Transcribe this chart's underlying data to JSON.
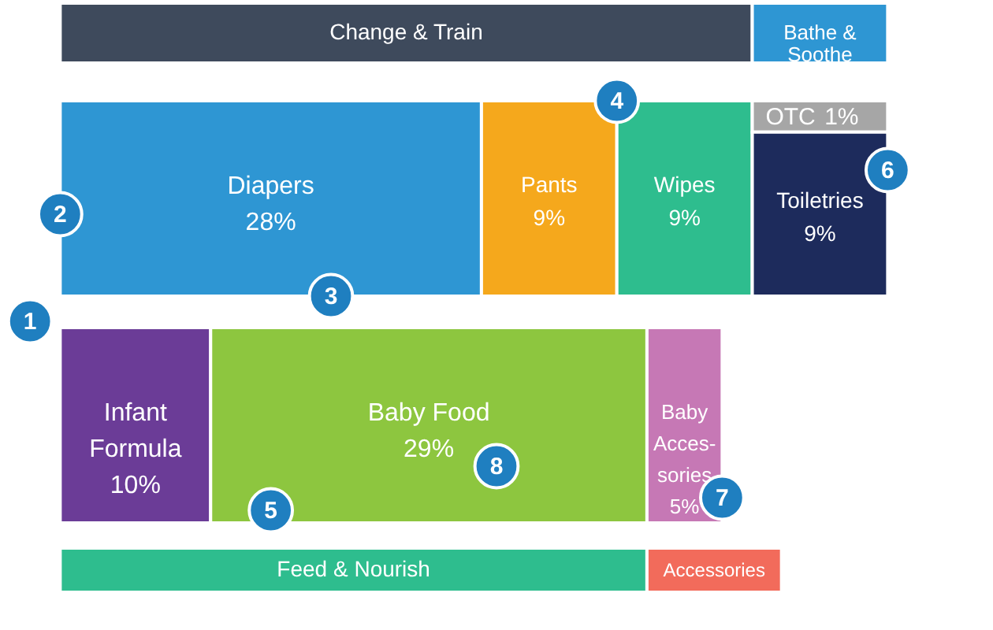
{
  "chart_data": {
    "type": "other",
    "categories": [
      "Diapers",
      "Pants",
      "Wipes",
      "OTC",
      "Toiletries",
      "Infant\nFormula",
      "Baby Food",
      "Baby\nAcces-\nsories"
    ],
    "values": [
      28,
      9,
      9,
      1,
      9,
      10,
      29,
      5
    ],
    "value_labels": [
      "28%",
      "9%",
      "9%",
      "1%",
      "9%",
      "10%",
      "29%",
      "5%"
    ],
    "colors": [
      "#2e96d3",
      "#f5a81c",
      "#2ebd8e",
      "#a6a6a6",
      "#1d2b5c",
      "#6b3c97",
      "#8dc63f",
      "#c678b5"
    ],
    "annotations": [
      "Change & Train",
      "Bathe &\nSoothe",
      "Feed & Nourish",
      "Accessories",
      "1",
      "2",
      "3",
      "4",
      "5",
      "6",
      "7",
      "8"
    ]
  }
}
